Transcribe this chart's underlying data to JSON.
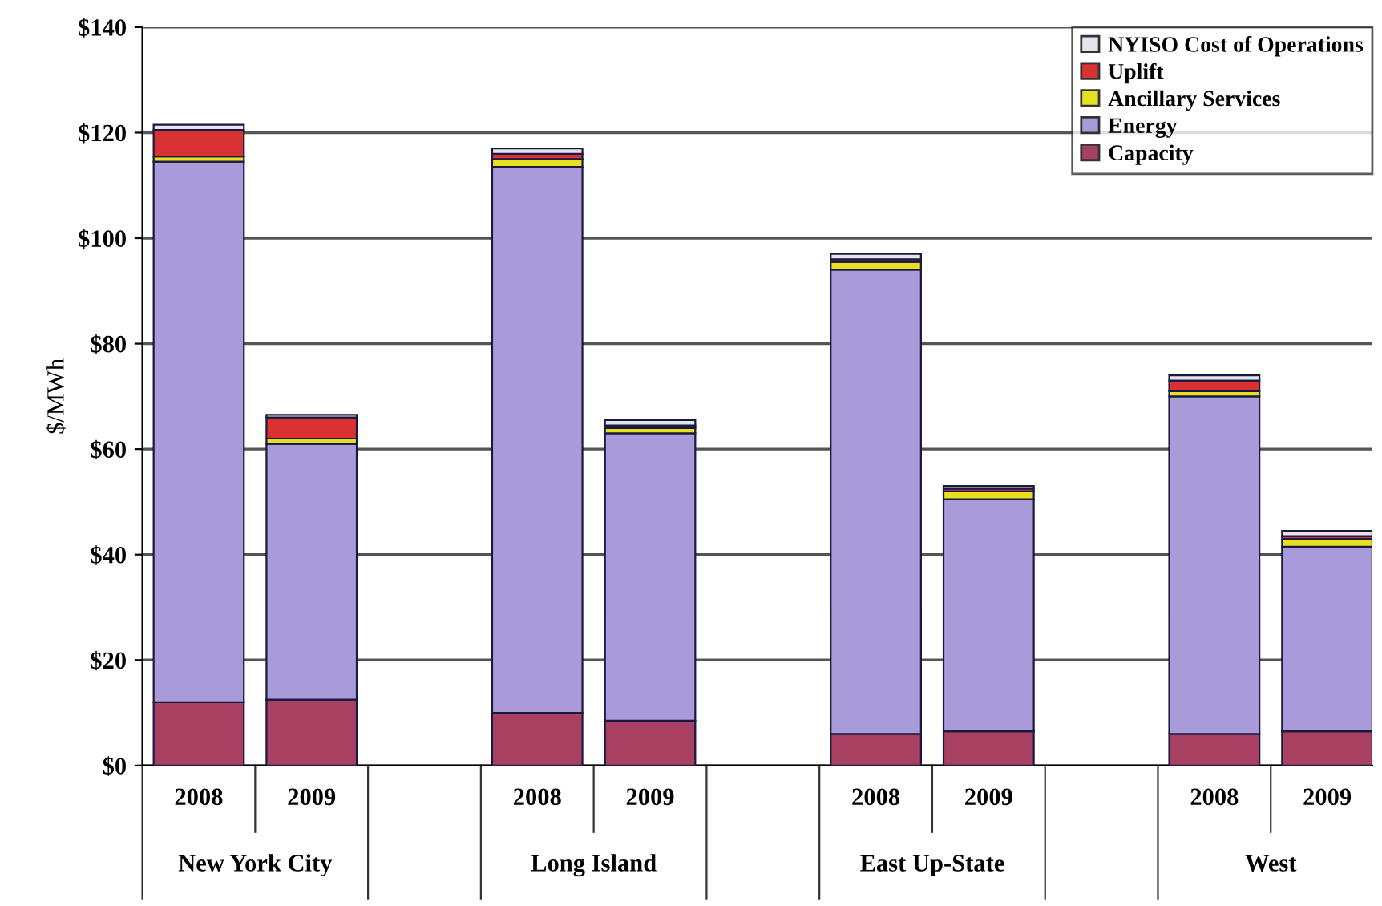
{
  "chart_data": {
    "type": "bar",
    "stacked": true,
    "ylabel": "$/MWh",
    "categories": [
      "2008",
      "2009",
      null,
      "2008",
      "2009",
      null,
      "2008",
      "2009",
      null,
      "2008",
      "2009"
    ],
    "annotations": [
      "New York City",
      "Long Island",
      "East Up-State",
      "West"
    ],
    "series": [
      {
        "name": "Capacity",
        "color": "#a84062",
        "values": [
          12,
          12.5,
          null,
          10,
          8.5,
          null,
          6,
          6.5,
          null,
          6,
          6.5
        ]
      },
      {
        "name": "Energy",
        "color": "#a99ad9",
        "values": [
          102.5,
          48.5,
          null,
          103.5,
          54.5,
          null,
          88,
          44,
          null,
          64,
          35
        ]
      },
      {
        "name": "Ancillary Services",
        "color": "#e6e020",
        "values": [
          1,
          1,
          null,
          1.5,
          1,
          null,
          1.5,
          1.5,
          null,
          1,
          1.5
        ]
      },
      {
        "name": "Uplift",
        "color": "#d83232",
        "values": [
          5,
          4,
          null,
          1,
          0.5,
          null,
          0.5,
          0.5,
          null,
          2,
          0.5
        ]
      },
      {
        "name": "NYISO Cost of Operations",
        "color": "#e4e4ec",
        "values": [
          1,
          0.5,
          null,
          1,
          1,
          null,
          1,
          0.5,
          null,
          1,
          1
        ]
      }
    ],
    "ylim": [
      0,
      140
    ],
    "yticks": [
      {
        "value": 0,
        "label": "$0"
      },
      {
        "value": 20,
        "label": "$20"
      },
      {
        "value": 40,
        "label": "$40"
      },
      {
        "value": 60,
        "label": "$60"
      },
      {
        "value": 80,
        "label": "$80"
      },
      {
        "value": 100,
        "label": "$100"
      },
      {
        "value": 120,
        "label": "$120"
      },
      {
        "value": 140,
        "label": "$140"
      }
    ],
    "grid": "y",
    "legend": "top right"
  }
}
